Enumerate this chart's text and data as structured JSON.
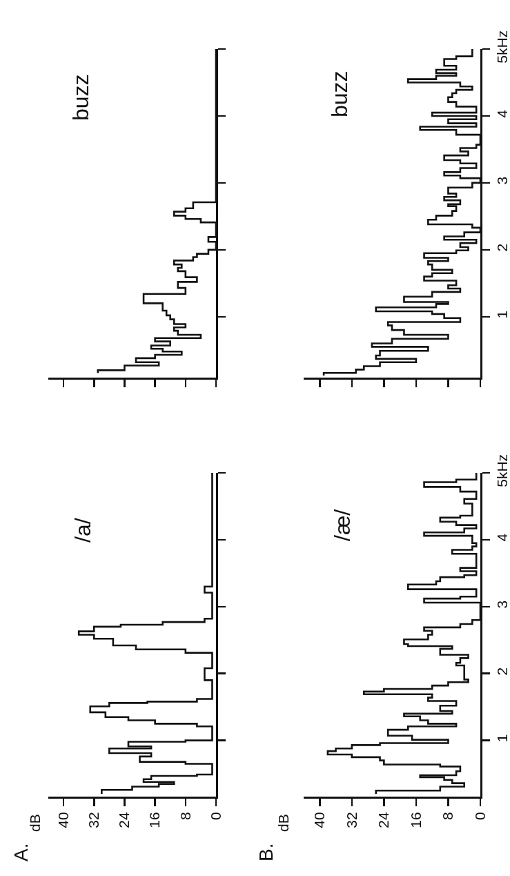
{
  "chart_data": [
    {
      "type": "step",
      "title": "buzz",
      "color": "#111111",
      "grid": false,
      "tick_labels": false,
      "xticks": [
        0,
        8,
        16,
        24,
        32,
        40
      ],
      "yticks": [
        1,
        2,
        3,
        4,
        5
      ],
      "values": [
        0.16,
        0.2,
        0.27,
        0.32,
        0.38,
        0.43,
        0.48,
        0.52,
        0.57,
        0.63,
        0.68,
        0.73,
        0.79,
        0.84,
        0.89,
        0.96,
        1.02,
        1.09,
        1.2,
        1.34,
        1.43,
        1.52,
        1.59,
        1.68,
        1.73,
        1.78,
        1.84,
        1.89,
        1.94,
        2.0,
        2.12,
        2.19,
        2.41,
        2.46,
        2.51,
        2.57,
        2.62,
        2.71,
        5.0
      ],
      "x": [
        31,
        24,
        15,
        21,
        16,
        9,
        14,
        17,
        12,
        16,
        4,
        10,
        11,
        8,
        11,
        12,
        13,
        14,
        19,
        8,
        10,
        5,
        8,
        10,
        9,
        11,
        6,
        5,
        2,
        0,
        2,
        0,
        4,
        8,
        11,
        8,
        6,
        0,
        0
      ]
    },
    {
      "type": "step",
      "title": "buzz",
      "color": "#111111",
      "grid": false,
      "tick_labels": "y",
      "xlim": [
        44,
        0
      ],
      "xticks": [
        0,
        8,
        16,
        24,
        32,
        40
      ],
      "ylim": [
        0.09,
        5
      ],
      "yticks": [
        1,
        2,
        3,
        4,
        {
          "value": 5,
          "label": "5kHz"
        }
      ],
      "values": [
        0.12,
        0.16,
        0.21,
        0.26,
        0.32,
        0.37,
        0.42,
        0.49,
        0.55,
        0.6,
        0.67,
        0.73,
        0.8,
        0.87,
        0.92,
        0.98,
        1.04,
        1.08,
        1.14,
        1.19,
        1.22,
        1.3,
        1.37,
        1.42,
        1.47,
        1.54,
        1.6,
        1.65,
        1.7,
        1.78,
        1.83,
        1.88,
        1.95,
        1.99,
        2.04,
        2.1,
        2.15,
        2.2,
        2.26,
        2.33,
        2.38,
        2.45,
        2.51,
        2.58,
        2.65,
        2.68,
        2.74,
        2.79,
        2.84,
        2.93,
        3.0,
        3.07,
        3.11,
        3.16,
        3.22,
        3.29,
        3.34,
        3.41,
        3.47,
        3.52,
        3.57,
        3.72,
        3.79,
        3.84,
        3.89,
        3.95,
        4.0,
        4.05,
        4.14,
        4.21,
        4.28,
        4.34,
        4.39,
        4.44,
        4.5,
        4.55,
        4.6,
        4.64,
        4.69,
        4.75,
        4.85,
        4.89,
        5.0
      ],
      "x": [
        39,
        31,
        29,
        25,
        16,
        26,
        25,
        13,
        27,
        22,
        8,
        19,
        22,
        23,
        5,
        9,
        12,
        26,
        11,
        8,
        19,
        12,
        5,
        8,
        6,
        14,
        12,
        7,
        12,
        13,
        8,
        14,
        6,
        3,
        5,
        1,
        9,
        4,
        0,
        2,
        13,
        11,
        7,
        6,
        8,
        5,
        9,
        6,
        8,
        2,
        0,
        5,
        9,
        5,
        1,
        5,
        9,
        3,
        5,
        1,
        0,
        6,
        15,
        1,
        8,
        1,
        12,
        1,
        6,
        8,
        7,
        6,
        2,
        5,
        18,
        11,
        6,
        11,
        6,
        9,
        6,
        2,
        2
      ]
    },
    {
      "type": "step",
      "title": "/a/",
      "annotations": [
        "A.",
        "dB"
      ],
      "color": "#111111",
      "grid": false,
      "tick_labels": "x",
      "xlim": [
        44,
        0
      ],
      "xticks": [
        0,
        8,
        16,
        24,
        32,
        40
      ],
      "yticks": [
        1,
        2,
        3,
        4,
        5
      ],
      "values": [
        0.2,
        0.26,
        0.31,
        0.35,
        0.38,
        0.42,
        0.47,
        0.49,
        0.65,
        0.68,
        0.76,
        0.81,
        0.88,
        0.91,
        0.98,
        1.0,
        1.21,
        1.25,
        1.3,
        1.35,
        1.42,
        1.51,
        1.56,
        1.58,
        1.62,
        1.9,
        2.08,
        2.31,
        2.36,
        2.42,
        2.52,
        2.58,
        2.63,
        2.7,
        2.73,
        2.77,
        2.82,
        3.21,
        3.3,
        5.0
      ],
      "x": [
        30,
        22,
        15,
        11,
        19,
        17,
        5,
        1,
        8,
        20,
        17,
        28,
        17,
        23,
        8,
        1,
        5,
        16,
        23,
        29,
        33,
        28,
        18,
        5,
        1,
        3,
        1,
        8,
        21,
        27,
        32,
        36,
        32,
        25,
        14,
        3,
        1,
        3,
        1,
        1
      ]
    },
    {
      "type": "step",
      "title": "/æ/",
      "annotations": [
        "B.",
        "dB"
      ],
      "color": "#111111",
      "grid": false,
      "xlim": [
        44,
        0
      ],
      "xticks": [
        0,
        8,
        16,
        24,
        32,
        40
      ],
      "ylim": [
        0.16,
        5
      ],
      "yticks": [
        1,
        2,
        3,
        4,
        {
          "value": 5,
          "label": "5kHz"
        }
      ],
      "values": [
        0.2,
        0.25,
        0.31,
        0.36,
        0.41,
        0.45,
        0.48,
        0.54,
        0.61,
        0.64,
        0.7,
        0.75,
        0.79,
        0.84,
        0.88,
        0.93,
        0.96,
        1.01,
        1.07,
        1.16,
        1.21,
        1.25,
        1.3,
        1.36,
        1.4,
        1.44,
        1.52,
        1.59,
        1.64,
        1.69,
        1.73,
        1.77,
        1.82,
        1.87,
        1.91,
        2.12,
        2.16,
        2.23,
        2.28,
        2.37,
        2.41,
        2.44,
        2.51,
        2.58,
        2.64,
        2.69,
        2.74,
        2.8,
        3.06,
        3.12,
        3.15,
        3.26,
        3.33,
        3.38,
        3.44,
        3.47,
        3.53,
        3.58,
        3.79,
        3.85,
        3.9,
        3.95,
        4.06,
        4.11,
        4.17,
        4.22,
        4.27,
        4.33,
        4.36,
        4.54,
        4.61,
        4.72,
        4.79,
        4.86,
        4.9,
        5.0
      ],
      "x": [
        26,
        10,
        4,
        7,
        9,
        15,
        6,
        5,
        10,
        24,
        25,
        32,
        38,
        36,
        32,
        25,
        8,
        17,
        23,
        18,
        6,
        13,
        15,
        19,
        7,
        10,
        6,
        13,
        12,
        29,
        24,
        12,
        8,
        3,
        4,
        6,
        5,
        3,
        10,
        7,
        18,
        19,
        13,
        12,
        14,
        5,
        2,
        0,
        14,
        5,
        1,
        18,
        11,
        10,
        4,
        1,
        5,
        1,
        7,
        2,
        1,
        2,
        14,
        4,
        1,
        6,
        10,
        5,
        2,
        4,
        1,
        5,
        14,
        6,
        1,
        1
      ]
    }
  ]
}
